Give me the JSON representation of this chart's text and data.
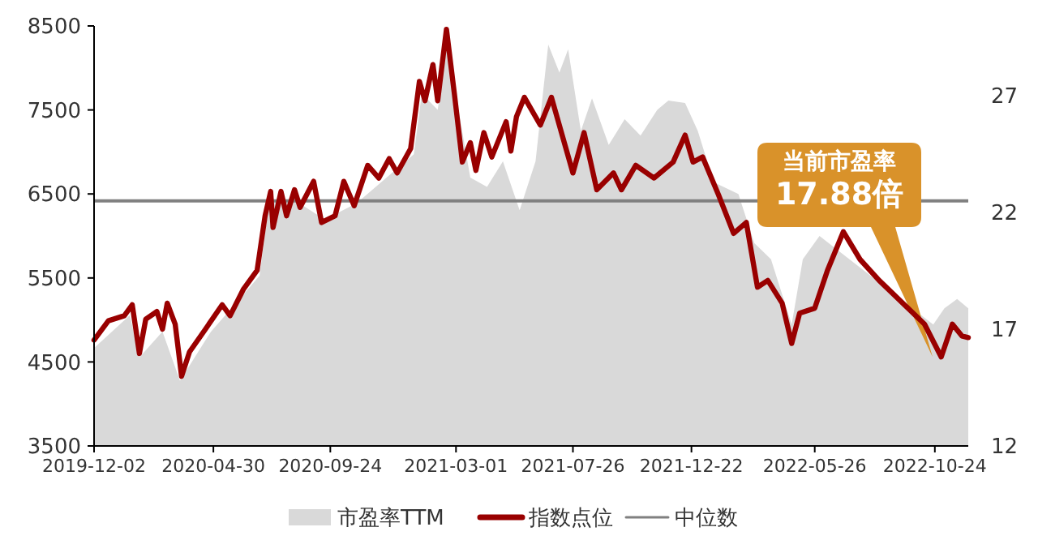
{
  "chart_data": {
    "type": "line",
    "x": [
      "2019-12-02",
      "2019-12-20",
      "2020-01-09",
      "2020-01-19",
      "2020-01-28",
      "2020-02-05",
      "2020-02-19",
      "2020-02-26",
      "2020-03-03",
      "2020-03-13",
      "2020-03-21",
      "2020-03-31",
      "2020-04-20",
      "2020-05-11",
      "2020-05-21",
      "2020-06-07",
      "2020-06-24",
      "2020-07-04",
      "2020-07-11",
      "2020-07-14",
      "2020-07-24",
      "2020-07-31",
      "2020-08-10",
      "2020-08-17",
      "2020-09-03",
      "2020-09-13",
      "2020-09-30",
      "2020-10-11",
      "2020-10-24",
      "2020-11-10",
      "2020-11-24",
      "2020-12-07",
      "2020-12-17",
      "2021-01-03",
      "2021-01-14",
      "2021-01-21",
      "2021-01-31",
      "2021-02-06",
      "2021-02-17",
      "2021-02-27",
      "2021-03-09",
      "2021-03-19",
      "2021-03-26",
      "2021-04-05",
      "2021-04-15",
      "2021-05-03",
      "2021-05-09",
      "2021-05-16",
      "2021-05-26",
      "2021-06-15",
      "2021-06-29",
      "2021-07-26",
      "2021-08-09",
      "2021-08-25",
      "2021-09-15",
      "2021-09-25",
      "2021-10-13",
      "2021-11-05",
      "2021-11-29",
      "2021-12-14",
      "2021-12-24",
      "2022-01-05",
      "2022-01-25",
      "2022-02-13",
      "2022-03-01",
      "2022-03-15",
      "2022-03-28",
      "2022-04-15",
      "2022-04-27",
      "2022-05-07",
      "2022-05-26",
      "2022-06-11",
      "2022-07-01",
      "2022-07-22",
      "2022-08-15",
      "2022-10-11",
      "2022-11-01",
      "2022-11-15",
      "2022-11-27",
      "2022-12-05"
    ],
    "series": [
      {
        "name": "市盈率TTM",
        "type": "area",
        "axis": "y2",
        "color": "#d9d9d9",
        "x": [
          "2019-12-02",
          "2020-01-16",
          "2020-01-28",
          "2020-02-26",
          "2020-03-19",
          "2020-04-27",
          "2020-06-07",
          "2020-06-27",
          "2020-07-09",
          "2020-08-07",
          "2020-09-17",
          "2020-10-27",
          "2020-12-07",
          "2021-01-07",
          "2021-01-17",
          "2021-02-06",
          "2021-02-17",
          "2021-03-03",
          "2021-03-19",
          "2021-04-09",
          "2021-04-29",
          "2021-05-20",
          "2021-06-09",
          "2021-06-25",
          "2021-07-09",
          "2021-07-20",
          "2021-08-05",
          "2021-08-19",
          "2021-09-09",
          "2021-09-29",
          "2021-10-19",
          "2021-11-09",
          "2021-11-23",
          "2021-12-14",
          "2021-12-30",
          "2022-01-19",
          "2022-02-19",
          "2022-03-11",
          "2022-04-01",
          "2022-04-27",
          "2022-05-11",
          "2022-06-01",
          "2022-06-21",
          "2022-07-12",
          "2022-08-01",
          "2022-09-01",
          "2022-10-01",
          "2022-10-22",
          "2022-11-05",
          "2022-11-21",
          "2022-12-05"
        ],
        "values": [
          16.2,
          17.6,
          15.8,
          16.9,
          14.8,
          16.9,
          18.5,
          19.3,
          22.4,
          22.6,
          21.7,
          22.4,
          23.6,
          24.5,
          27.1,
          26.4,
          29.0,
          26.6,
          23.5,
          23.1,
          24.2,
          22.1,
          24.2,
          29.2,
          28.0,
          29.0,
          25.5,
          26.9,
          24.9,
          26.0,
          25.3,
          26.4,
          26.8,
          26.7,
          25.5,
          23.3,
          22.8,
          20.7,
          20.0,
          17.2,
          20.0,
          21.0,
          null,
          null,
          null,
          null,
          null,
          17.2,
          17.9,
          18.3,
          17.9
        ]
      },
      {
        "name": "指数点位",
        "color": "#990000",
        "values": [
          4760,
          4990,
          5050,
          5180,
          4600,
          5010,
          5100,
          4890,
          5200,
          4950,
          4330,
          4620,
          4890,
          5180,
          5050,
          5370,
          5590,
          6240,
          6530,
          6100,
          6530,
          6240,
          6550,
          6340,
          6650,
          6160,
          6240,
          6650,
          6360,
          6840,
          6690,
          6920,
          6750,
          7040,
          7840,
          7610,
          8040,
          7610,
          8460,
          7690,
          6880,
          7110,
          6780,
          7230,
          6940,
          7360,
          7010,
          7420,
          7650,
          7320,
          7650,
          6750,
          7230,
          6550,
          6750,
          6550,
          6840,
          6690,
          6880,
          7200,
          6880,
          6940,
          6490,
          6030,
          6160,
          5390,
          5470,
          5200,
          4720,
          5080,
          5140,
          5590,
          6050,
          5720,
          5470,
          4950,
          4560,
          4950,
          4810,
          4790
        ]
      }
    ],
    "ref_lines": [
      {
        "axis": "y2",
        "value": 22.5,
        "label": "中位数",
        "color": "#808080"
      }
    ],
    "annotations": [
      "当前市盈率",
      "17.88倍"
    ],
    "xlim": [
      "2019-12-02",
      "2022-12-05"
    ],
    "xticks": [
      "2019-12-02",
      "2020-04-30",
      "2020-09-24",
      "2021-03-01",
      "2021-07-26",
      "2021-12-22",
      "2022-05-26",
      "2022-10-24"
    ],
    "ylim": [
      3500,
      8500
    ],
    "yticks": [
      3500,
      4500,
      5500,
      6500,
      7500,
      8500
    ],
    "y2lim": [
      12,
      30
    ],
    "y2ticks": [
      12,
      17,
      22,
      27
    ],
    "legend": "bottom",
    "grid": false
  }
}
